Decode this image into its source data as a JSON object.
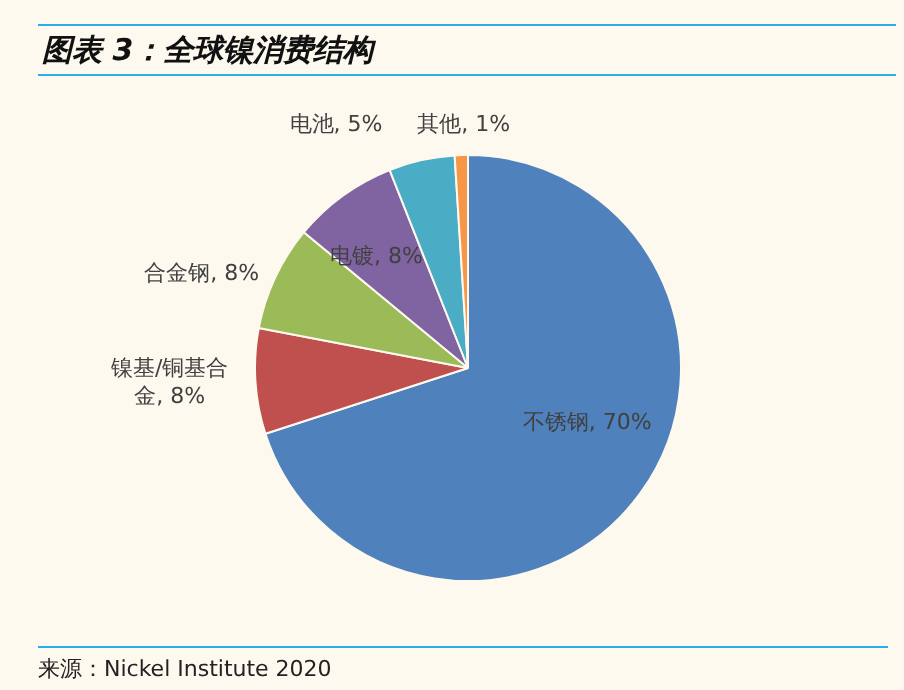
{
  "chart_data": {
    "type": "pie",
    "title": "图表 3：全球镍消费结构",
    "categories": [
      "不锈钢",
      "镍基/铜基合金",
      "合金钢",
      "电镀",
      "电池",
      "其他"
    ],
    "values": [
      70,
      8,
      8,
      8,
      5,
      1
    ],
    "value_labels": [
      "70%",
      "8%",
      "8%",
      "8%",
      "5%",
      "1%"
    ],
    "colors": [
      "#4f81bd",
      "#c0504d",
      "#9bbb59",
      "#8064a2",
      "#4bacc6",
      "#f79646"
    ],
    "legend": false,
    "annotations": [
      "来源：Nickel Institute 2020"
    ]
  }
}
